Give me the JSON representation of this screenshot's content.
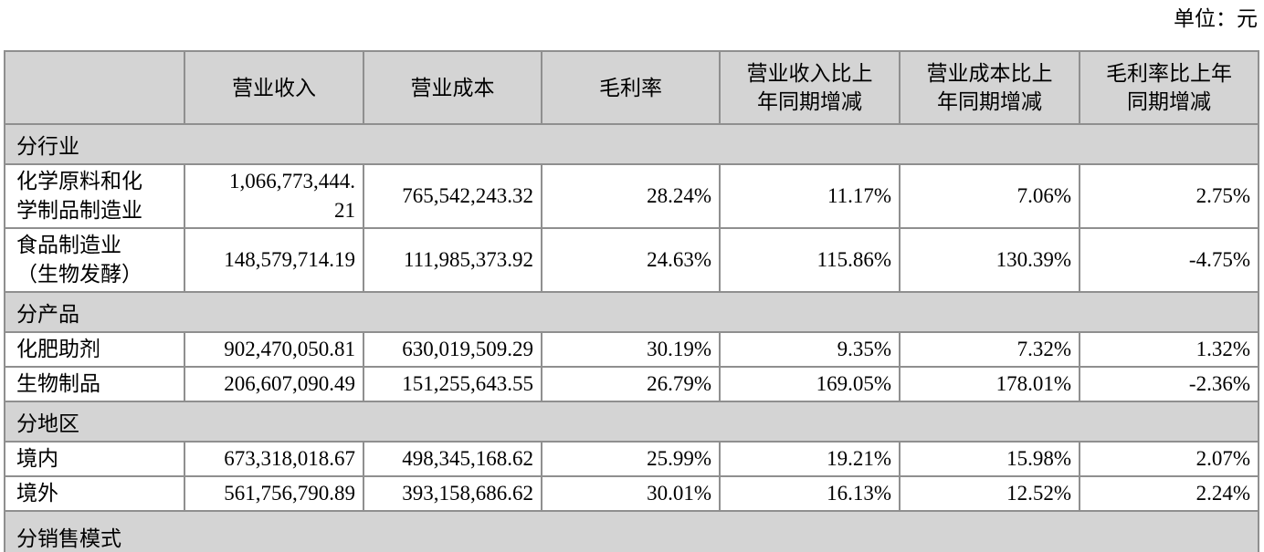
{
  "unit_label": "单位：元",
  "colors": {
    "section_bg": "#d4d4d4",
    "header_bg": "#d4d4d4",
    "row_bg": "#ffffff",
    "border": "#8f8f8f",
    "text": "#000000"
  },
  "table": {
    "columns": [
      "",
      "营业收入",
      "营业成本",
      "毛利率",
      "营业收入比上年同期增减",
      "营业成本比上年同期增减",
      "毛利率比上年同期增减"
    ],
    "sections": [
      {
        "title": "分行业",
        "rows": [
          {
            "label": "化学原料和化学制品制造业",
            "values": [
              "1,066,773,444.21",
              "765,542,243.32",
              "28.24%",
              "11.17%",
              "7.06%",
              "2.75%"
            ]
          },
          {
            "label": "食品制造业（生物发酵）",
            "values": [
              "148,579,714.19",
              "111,985,373.92",
              "24.63%",
              "115.86%",
              "130.39%",
              "-4.75%"
            ]
          }
        ]
      },
      {
        "title": "分产品",
        "rows": [
          {
            "label": "化肥助剂",
            "values": [
              "902,470,050.81",
              "630,019,509.29",
              "30.19%",
              "9.35%",
              "7.32%",
              "1.32%"
            ]
          },
          {
            "label": "生物制品",
            "values": [
              "206,607,090.49",
              "151,255,643.55",
              "26.79%",
              "169.05%",
              "178.01%",
              "-2.36%"
            ]
          }
        ]
      },
      {
        "title": "分地区",
        "rows": [
          {
            "label": "境内",
            "values": [
              "673,318,018.67",
              "498,345,168.62",
              "25.99%",
              "19.21%",
              "15.98%",
              "2.07%"
            ]
          },
          {
            "label": "境外",
            "values": [
              "561,756,790.89",
              "393,158,686.62",
              "30.01%",
              "16.13%",
              "12.52%",
              "2.24%"
            ]
          }
        ]
      },
      {
        "title": "分销售模式",
        "rows": []
      }
    ]
  }
}
